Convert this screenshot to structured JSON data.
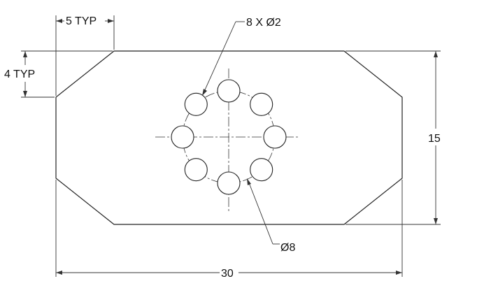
{
  "dimensions": {
    "chamfer_width": "5 TYP",
    "chamfer_height": "4 TYP",
    "holes": "8 X Ø2",
    "height": "15",
    "width": "30",
    "bolt_circle": "Ø8"
  },
  "drawing": {
    "line_color": "#222222",
    "background": "#ffffff"
  }
}
